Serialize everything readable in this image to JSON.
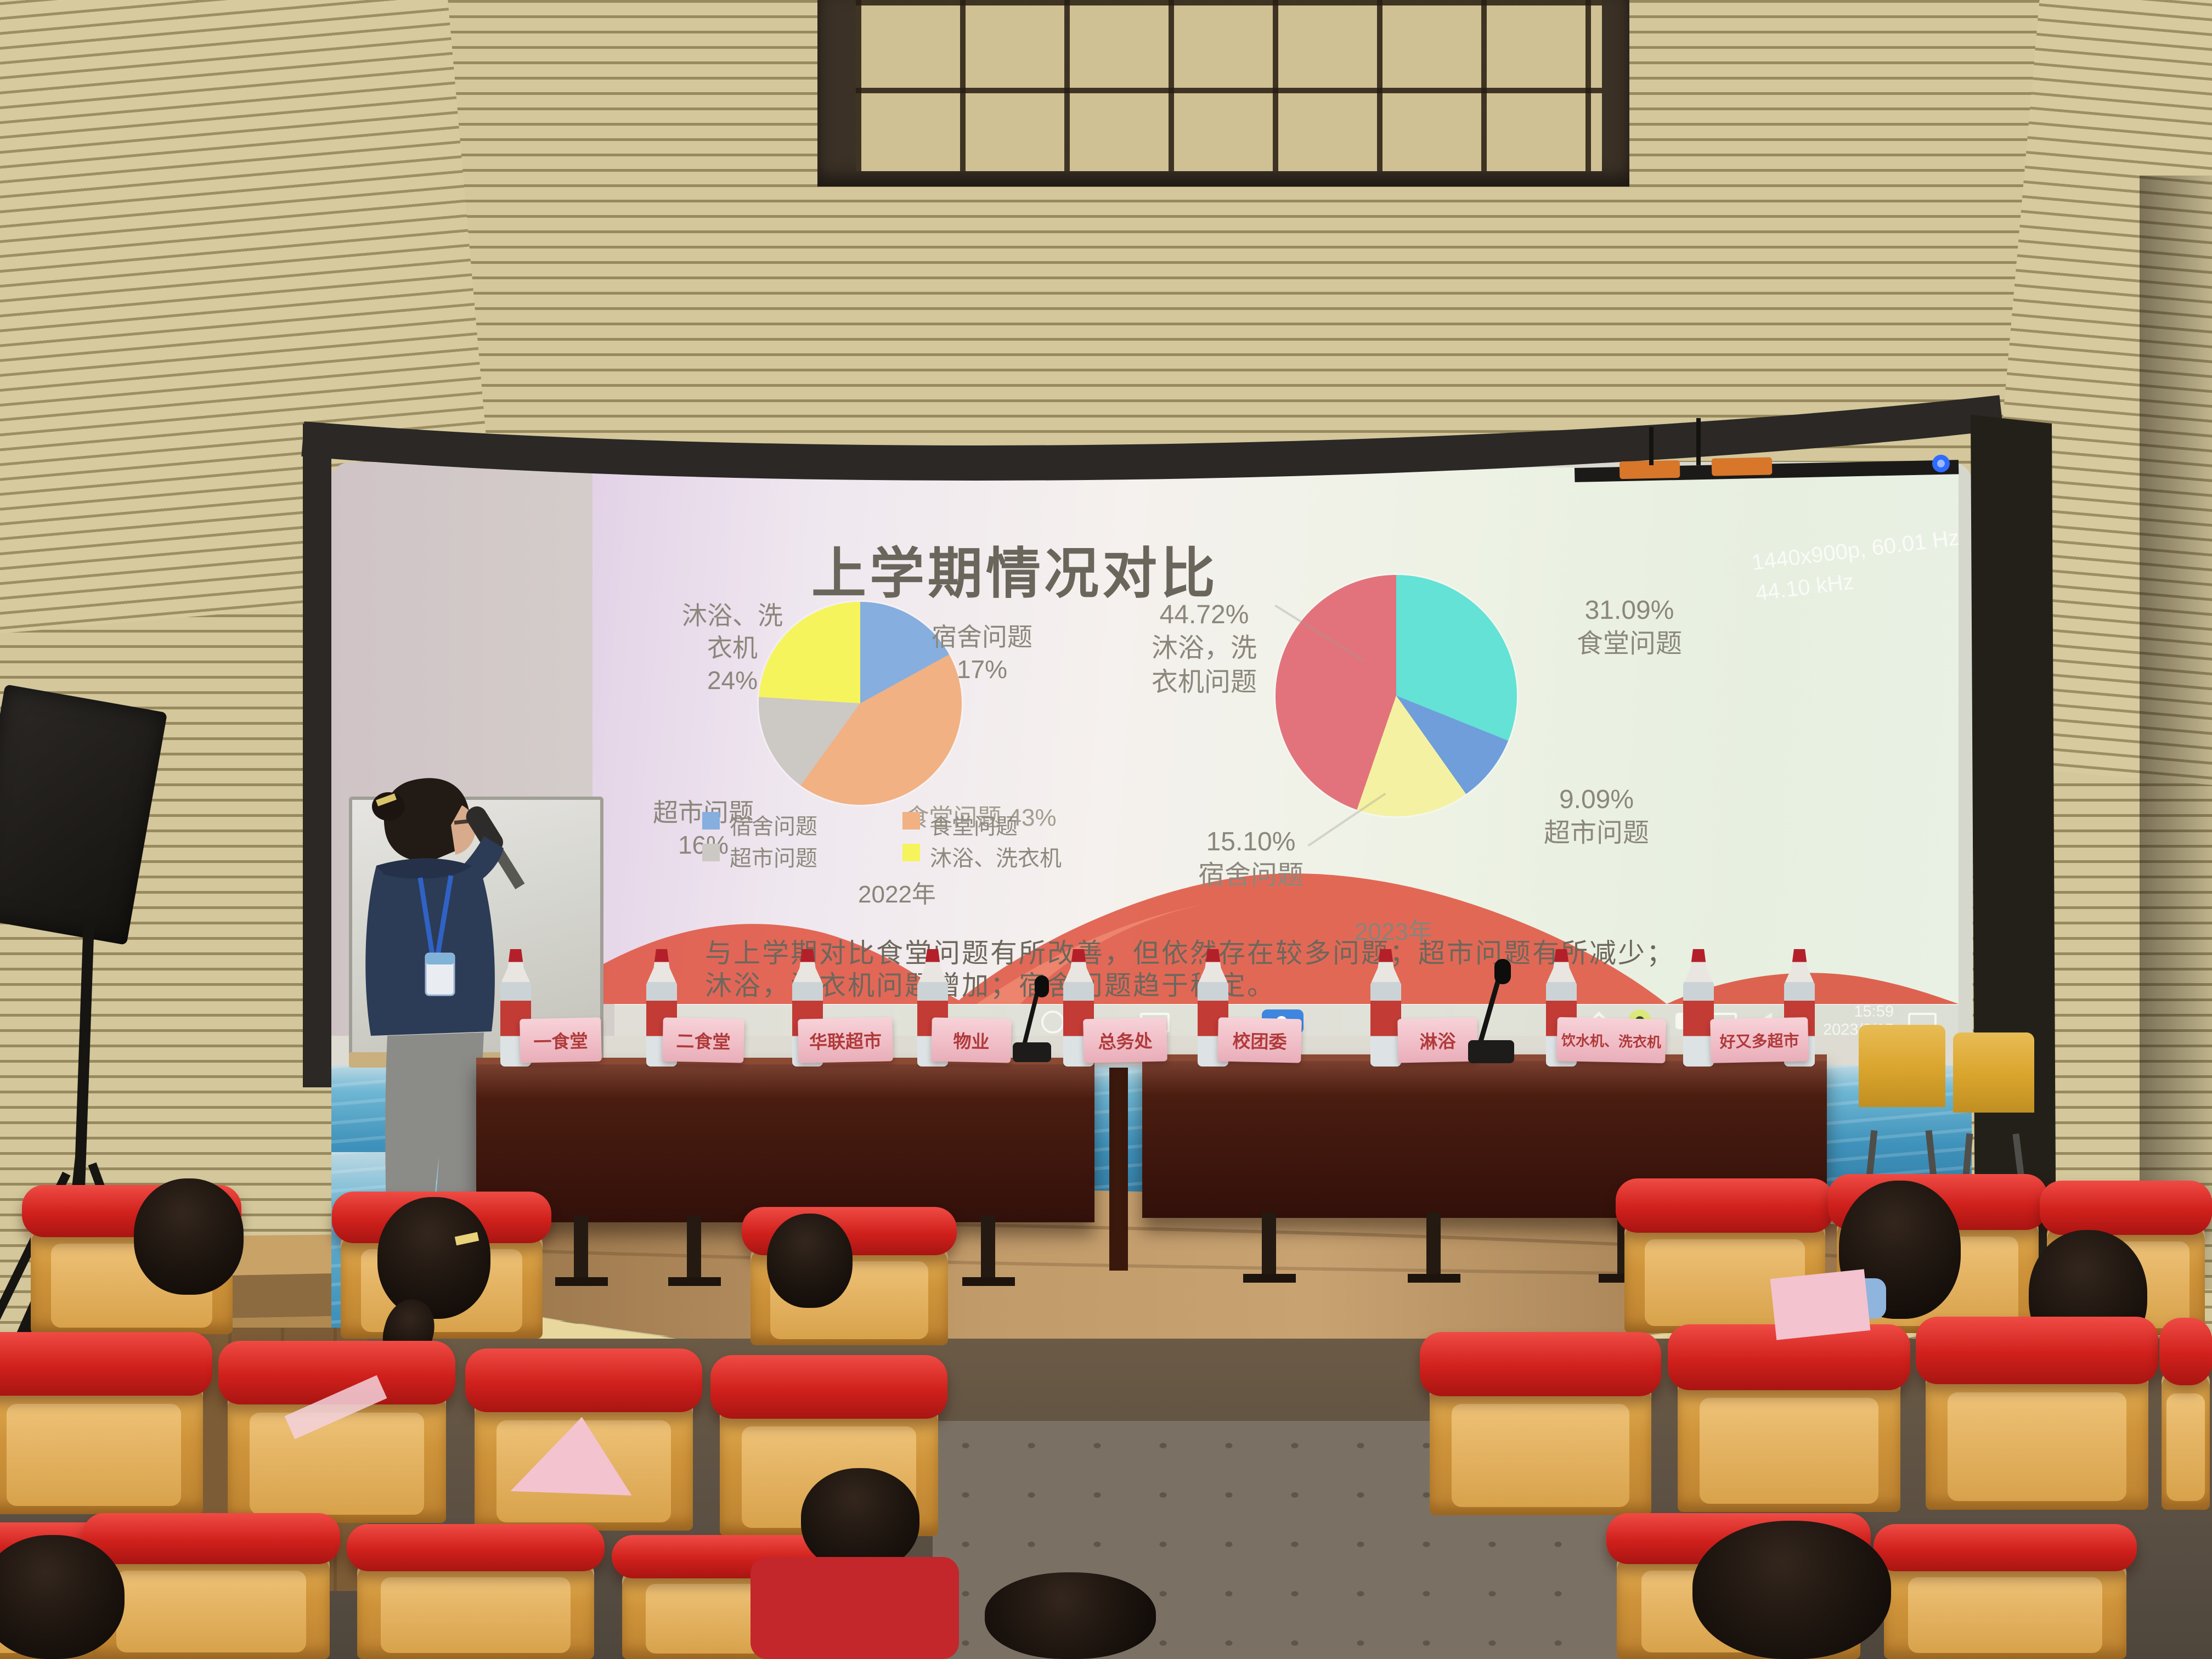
{
  "slide": {
    "title": "上学期情况对比",
    "summary_line1": "与上学期对比食堂问题有所改善，但依然存在较多问题；超市问题有所减少；",
    "summary_line2": "沐浴，洗衣机问题增加；宿舍问题趋于稳定。"
  },
  "chart_data": [
    {
      "type": "pie",
      "year_label": "2022年",
      "legend_position": "bottom",
      "slices": [
        {
          "label": "宿舍问题",
          "value": 17,
          "pct_label": "17%",
          "color": "#86aede"
        },
        {
          "label": "食堂问题",
          "value": 43,
          "pct_label": "43%",
          "color": "#f1b183"
        },
        {
          "label": "超市问题",
          "value": 16,
          "pct_label": "16%",
          "color": "#ccc8c4"
        },
        {
          "label": "沐浴、洗衣机",
          "value": 24,
          "pct_label": "24%",
          "color": "#f6f45c"
        }
      ]
    },
    {
      "type": "pie",
      "year_label": "2023年",
      "legend_position": "none",
      "slices": [
        {
          "label": "食堂问题",
          "value": 31.09,
          "pct_label": "31.09%",
          "color": "#63e2d5"
        },
        {
          "label": "超市问题",
          "value": 9.09,
          "pct_label": "9.09%",
          "color": "#6f9edb"
        },
        {
          "label": "宿舍问题",
          "value": 15.1,
          "pct_label": "15.10%",
          "color": "#f4f2a2"
        },
        {
          "label": "沐浴，洗衣机问题",
          "value": 44.72,
          "pct_label": "44.72%",
          "color": "#e2737c"
        }
      ]
    }
  ],
  "screen_osd": {
    "line1": "1440x900p, 60.01 Hz",
    "line2": "44.10 kHz"
  },
  "taskbar": {
    "time": "15:59",
    "date": "2023/3/15"
  },
  "name_cards": [
    "一食堂",
    "二食堂",
    "华联超市",
    "物业",
    "总务处",
    "校团委",
    "淋浴",
    "饮水机、洗衣机",
    "好又多超市"
  ],
  "colors": {
    "ribbon_red": "#e0513d",
    "sea_blue": "#3f92bb",
    "seat_red": "#d0201c",
    "seat_wood": "#d79a3e",
    "table_wood": "#4a1d10",
    "stage_band": "#e8d89e"
  }
}
